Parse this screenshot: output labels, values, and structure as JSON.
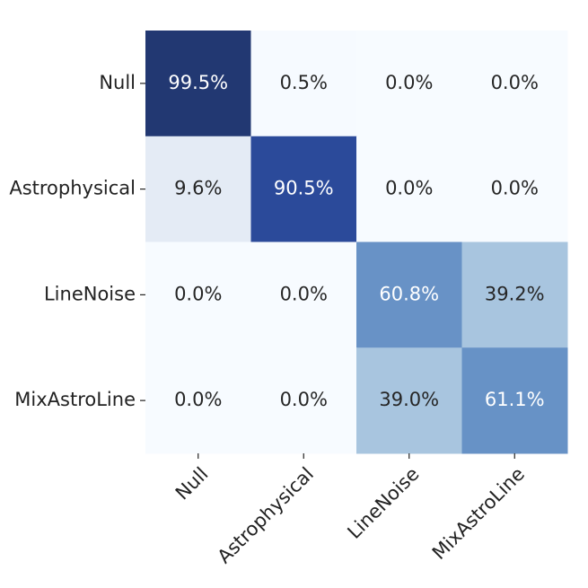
{
  "chart_data": {
    "type": "heatmap",
    "rows": [
      "Null",
      "Astrophysical",
      "LineNoise",
      "MixAstroLine"
    ],
    "columns": [
      "Null",
      "Astrophysical",
      "LineNoise",
      "MixAstroLine"
    ],
    "values": [
      [
        99.5,
        0.5,
        0.0,
        0.0
      ],
      [
        9.6,
        90.5,
        0.0,
        0.0
      ],
      [
        0.0,
        0.0,
        60.8,
        39.2
      ],
      [
        0.0,
        0.0,
        39.0,
        61.1
      ]
    ],
    "value_labels": [
      [
        "99.5%",
        "0.5%",
        "0.0%",
        "0.0%"
      ],
      [
        "9.6%",
        "90.5%",
        "0.0%",
        "0.0%"
      ],
      [
        "0.0%",
        "0.0%",
        "60.8%",
        "39.2%"
      ],
      [
        "0.0%",
        "0.0%",
        "39.0%",
        "61.1%"
      ]
    ],
    "colormap": "Blues"
  }
}
